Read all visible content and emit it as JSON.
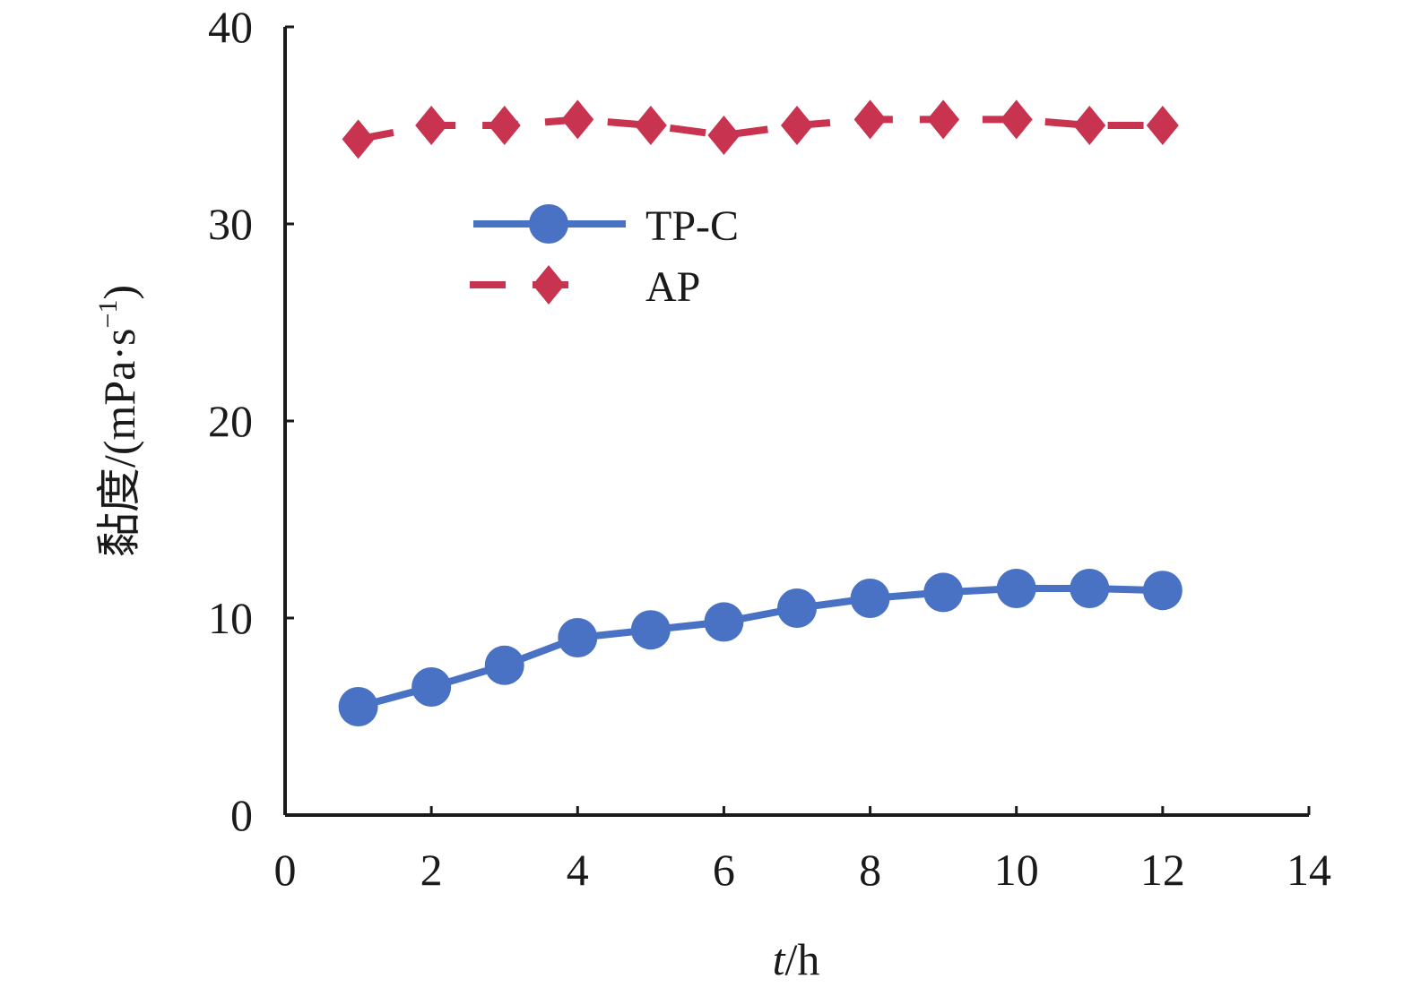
{
  "chart_data": {
    "type": "line",
    "x_axis": {
      "label_italic": "t",
      "label_rest": "/h",
      "range": [
        0,
        14
      ],
      "ticks": [
        0,
        2,
        4,
        6,
        8,
        10,
        12,
        14
      ]
    },
    "y_axis": {
      "label": "黏度/(mPa·s",
      "label_sup": "−1",
      "label_close": ")",
      "range": [
        0,
        40
      ],
      "ticks": [
        0,
        10,
        20,
        30,
        40
      ]
    },
    "grid": false,
    "legend_position": "upper-middle",
    "series": [
      {
        "name": "TP-C",
        "color": "#4a72c4",
        "line_style": "solid",
        "marker": "circle",
        "x": [
          1,
          2,
          3,
          4,
          5,
          6,
          7,
          8,
          9,
          10,
          11,
          12
        ],
        "y": [
          5.5,
          6.5,
          7.6,
          9.0,
          9.4,
          9.8,
          10.5,
          11.0,
          11.3,
          11.5,
          11.5,
          11.4
        ]
      },
      {
        "name": "AP",
        "color": "#c8344f",
        "line_style": "dashed",
        "marker": "diamond",
        "x": [
          1,
          2,
          3,
          4,
          5,
          6,
          7,
          8,
          9,
          10,
          11,
          12
        ],
        "y": [
          34.3,
          35.0,
          35.0,
          35.3,
          35.0,
          34.5,
          35.0,
          35.3,
          35.3,
          35.3,
          35.0,
          35.0
        ]
      }
    ]
  }
}
